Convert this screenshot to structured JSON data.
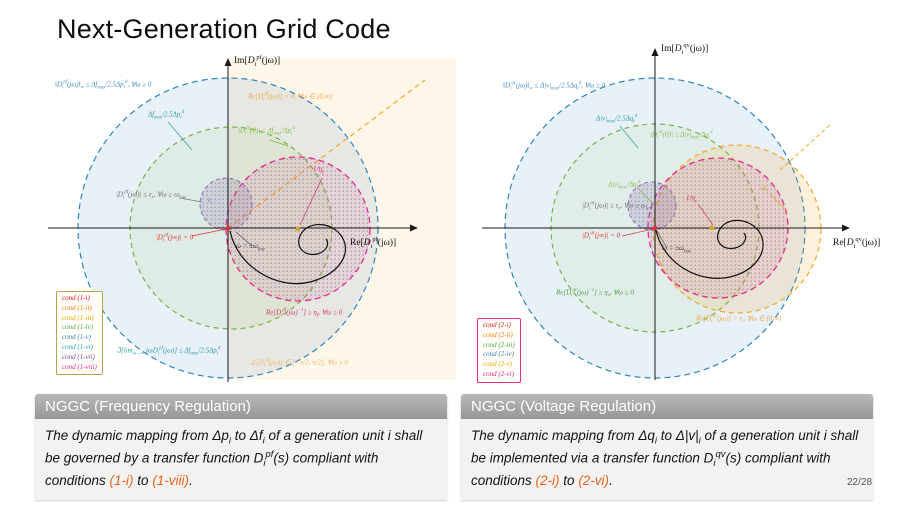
{
  "title": "Next-Generation Grid Code",
  "page_number": "22/28",
  "colors": {
    "blue": "#2d86c0",
    "green": "#79b23f",
    "pink": "#e7298a",
    "orange": "#f5a623",
    "purple": "#8e6bb1",
    "red": "#e03131",
    "teal": "#2a9d9d",
    "alert": "#e8641b",
    "header_gray": "#a0a0a0",
    "legend_left_border": "#b8a24a",
    "legend_right_border": "#e7298a"
  },
  "left_plot": {
    "ylabel": "Im[<i>D</i><sub>i</sub><sup>pf</sup>(jω)]",
    "xlabel": "Re[<i>D</i><sub>i</sub><sup>pf</sup>(jω)]",
    "annotations": {
      "hinf": {
        "text": "‖D<sub>i</sub><sup>pf</sup>(jω)‖<sub>∞</sub> ≤ Δf<sub>max</sub>/2.5Δp<sub>i</sub><sup>d</sup>, ∀ω ≥ 0",
        "color": "#3f8fc4"
      },
      "radius": {
        "text": "Δf<sub>max</sub>/2.5Δp<sub>i</sub><sup>d</sup>",
        "color": "#2a9d9d"
      },
      "repos": {
        "text": "Re[D<sub>i</sub><sup>pf</sup>(jω)] > 0, ∀ω ∈ (0,∞)",
        "color": "#f0a43c"
      },
      "dc": {
        "text": "|D<sub>i</sub><sup>pf</sup>(0)| ≤ Δf<sub>max</sub>/Δp<sub>i</sub><sup>d</sup>",
        "color": "#8ab84e"
      },
      "eps": {
        "text": "|D<sub>i</sub><sup>pf</sup>(jω)| ≤ ε<sub>r</sub>, ∀ω ≥ ω<sub>low</sub>",
        "color": "#6e6e6e"
      },
      "epsr": {
        "text": "ε<sub>r</sub>",
        "color": "#8e6bb1"
      },
      "inf": {
        "text": "|D<sub>i</sub><sup>pf</sup>(j∞)| = 0",
        "color": "#e03131"
      },
      "wlow": {
        "text": "ω = ±ω<sub>low</sub>",
        "color": "#3a3a3a"
      },
      "eta": {
        "text": "1/η<sub>f</sub>",
        "color": "#d6336c"
      },
      "reinv": {
        "text": "Re[D<sub>i</sub><sup>pf</sup>(jω)<sup>−1</sup>] ≥ η<sub>f</sub>, ∀ω ≥ 0",
        "color": "#d6336c"
      },
      "angle": {
        "text": "∠(D<sub>i</sub><sup>pf</sup>(jω)) ∈ [−π/2, π/2], ∀ω ≥ 0",
        "color": "#f2b56b"
      },
      "lim": {
        "text": "ℑ[lim<sub>ω→∞</sub> jωD<sub>i</sub><sup>pf</sup>(jω)] ≤ Δf<sub>max</sub>/2.5Δp<sub>i</sub><sup>d</sup>",
        "color": "#2a9d9d"
      }
    }
  },
  "right_plot": {
    "ylabel": "Im[<i>D</i><sub>i</sub><sup>qv</sup>(jω)]",
    "xlabel": "Re[<i>D</i><sub>i</sub><sup>qv</sup>(jω)]",
    "annotations": {
      "hinf": {
        "text": "‖D<sub>i</sub><sup>qv</sup>(jω)‖<sub>∞</sub> ≤ Δ|v|<sub>max</sub>/2.5Δq<sub>i</sub><sup>d</sup>, ∀ω ≥ 0",
        "color": "#3f8fc4"
      },
      "radius": {
        "text": "Δ|v|<sub>max</sub>/2.5Δq<sub>i</sub><sup>d</sup>",
        "color": "#2a9d9d"
      },
      "dc": {
        "text": "|D<sub>i</sub><sup>qv</sup>(0)| ≤ Δ|v|<sub>max</sub>/Δq<sub>i</sub><sup>d</sup>",
        "color": "#8ab84e"
      },
      "dc_small": {
        "text": "Δ|v|<sub>max</sub>/Δq<sub>i</sub><sup>d</sup>",
        "color": "#8ab84e"
      },
      "eps": {
        "text": "|D<sub>i</sub><sup>qv</sup>(jω)| ≤ ε<sub>r</sub>, ∀ω ≥ ω<sub>low</sub>",
        "color": "#6e6e6e"
      },
      "inf": {
        "text": "|D<sub>i</sub><sup>qv</sup>(j∞)| = 0",
        "color": "#e03131"
      },
      "wlow": {
        "text": "ω = ±ω<sub>low</sub>",
        "color": "#3a3a3a"
      },
      "eta": {
        "text": "1/η<sub>v</sub>",
        "color": "#d6336c"
      },
      "sqrt_eps": {
        "text": "√ε<sub>i</sub>",
        "color": "#e0a020"
      },
      "reinv": {
        "text": "Re[D<sub>i</sub><sup>qv</sup>(jω)<sup>−1</sup>] ≥ η<sub>v</sub>, ∀ω ≥ 0",
        "color": "#4c9e45"
      },
      "repos": {
        "text": "Re[D<sub>i</sub><sup>qv</sup>(jω)] > ε<sub>i</sub>, ∀ω ∈ (0,∞)",
        "color": "#f0a43c"
      }
    }
  },
  "left_legend": {
    "items": [
      {
        "label": "cond (1-i)",
        "color": "#e31a1c"
      },
      {
        "label": "cond (1-ii)",
        "color": "#ff7f00"
      },
      {
        "label": "cond (1-iii)",
        "color": "#e6ab02"
      },
      {
        "label": "cond (1-iv)",
        "color": "#4daf4a"
      },
      {
        "label": "cond (1-v)",
        "color": "#377eb8"
      },
      {
        "label": "cond (1-vi)",
        "color": "#1fa8a8"
      },
      {
        "label": "cond (1-vii)",
        "color": "#6a51a3"
      },
      {
        "label": "cond (1-viii)",
        "color": "#e7298a"
      }
    ]
  },
  "right_legend": {
    "items": [
      {
        "label": "cond (2-i)",
        "color": "#e31a1c"
      },
      {
        "label": "cond (2-ii)",
        "color": "#ff7f00"
      },
      {
        "label": "cond (2-iii)",
        "color": "#4daf4a"
      },
      {
        "label": "cond (2-iv)",
        "color": "#377eb8"
      },
      {
        "label": "cond (2-v)",
        "color": "#e6ab02"
      },
      {
        "label": "cond (2-vi)",
        "color": "#e7298a"
      }
    ]
  },
  "left_block": {
    "header": "NGGC (Frequency Regulation)",
    "body_html": "The dynamic mapping from Δp<sub>i</sub> to Δf<sub>i</sub> of a generation unit i shall be governed by a transfer function D<sub>i</sub><sup>pf</sup>(s) compliant with conditions <span class=\"alert\">(1-i)</span> to <span class=\"alert\">(1-viii)</span>."
  },
  "right_block": {
    "header": "NGGC (Voltage Regulation)",
    "body_html": "The dynamic mapping from Δq<sub>i</sub> to Δ|v|<sub>i</sub> of a generation unit i shall be implemented via a transfer function D<sub>i</sub><sup>qv</sup>(s) compliant with conditions <span class=\"alert\">(2-i)</span> to <span class=\"alert\">(2-vi)</span>."
  }
}
